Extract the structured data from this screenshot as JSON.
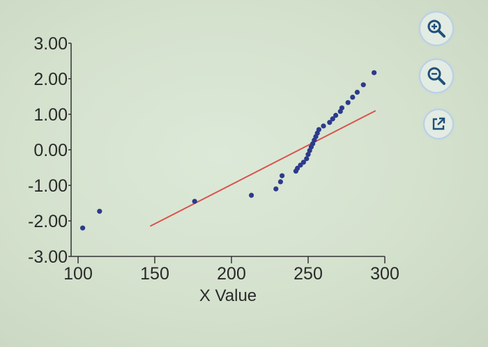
{
  "chart_data": {
    "type": "scatter",
    "xlabel": "X Value",
    "ylabel": "",
    "xlim": [
      100,
      300
    ],
    "ylim": [
      -3,
      3
    ],
    "x_ticks": [
      100,
      150,
      200,
      250,
      300
    ],
    "y ticks": [
      3,
      2,
      1,
      0,
      -1,
      -2,
      -3
    ],
    "x_tick_labels": [
      "100",
      "150",
      "200",
      "250",
      "300"
    ],
    "y_tick_labels": [
      "3.00",
      "2.00",
      "1.00",
      "0.00",
      "-1.00",
      "-2.00",
      "-3.00"
    ],
    "grid": false,
    "point_color": "#2c3a8c",
    "line_color": "#d9534f",
    "points": [
      [
        103,
        -2.2
      ],
      [
        114,
        -1.73
      ],
      [
        176,
        -1.45
      ],
      [
        213,
        -1.28
      ],
      [
        229,
        -1.1
      ],
      [
        232,
        -0.9
      ],
      [
        233,
        -0.73
      ],
      [
        242,
        -0.6
      ],
      [
        243,
        -0.52
      ],
      [
        245,
        -0.43
      ],
      [
        247,
        -0.35
      ],
      [
        249,
        -0.25
      ],
      [
        250,
        -0.13
      ],
      [
        251,
        -0.02
      ],
      [
        252,
        0.08
      ],
      [
        253,
        0.17
      ],
      [
        254,
        0.27
      ],
      [
        255,
        0.37
      ],
      [
        256,
        0.47
      ],
      [
        257,
        0.57
      ],
      [
        260,
        0.67
      ],
      [
        264,
        0.77
      ],
      [
        266,
        0.87
      ],
      [
        268,
        0.97
      ],
      [
        271,
        1.08
      ],
      [
        272,
        1.18
      ],
      [
        276,
        1.33
      ],
      [
        279,
        1.48
      ],
      [
        282,
        1.62
      ],
      [
        286,
        1.83
      ],
      [
        293,
        2.17
      ]
    ],
    "fit_line": [
      [
        147,
        -2.15
      ],
      [
        294,
        1.1
      ]
    ]
  },
  "toolbar": {
    "zoom_in_icon": "zoom-in-icon",
    "zoom_out_icon": "zoom-out-icon",
    "popout_icon": "external-link-icon"
  }
}
